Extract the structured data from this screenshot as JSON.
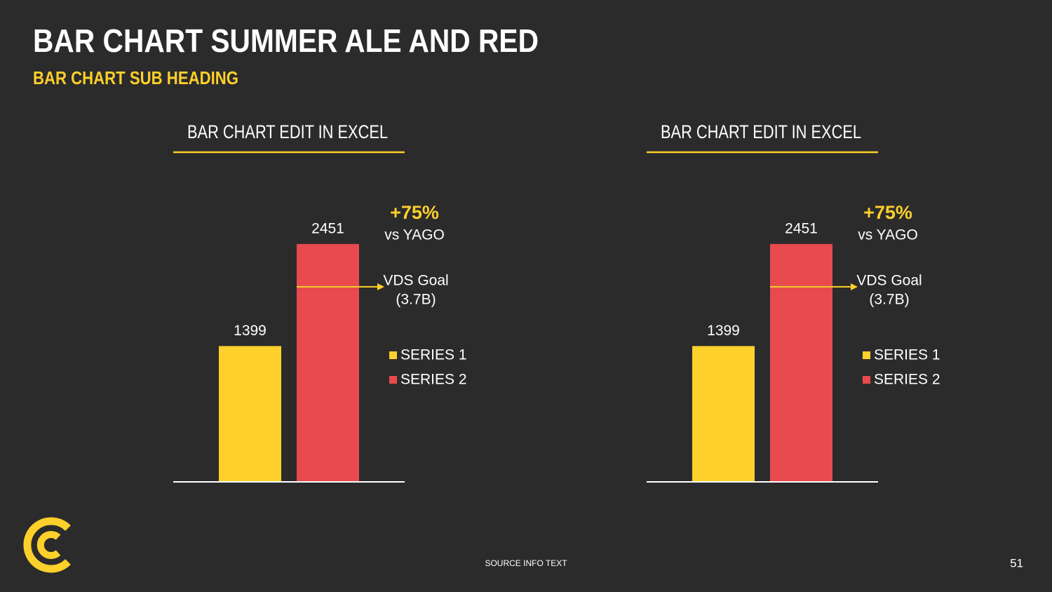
{
  "title": "BAR CHART SUMMER ALE AND RED",
  "subtitle": "BAR CHART SUB HEADING",
  "source": "SOURCE INFO TEXT",
  "page_number": 51,
  "chart_data": [
    {
      "type": "bar",
      "title": "BAR CHART EDIT IN EXCEL",
      "categories": [
        null
      ],
      "series": [
        {
          "name": "SERIES 1",
          "color": "#fdd02b",
          "values": [
            1399
          ]
        },
        {
          "name": "SERIES 2",
          "color": "#e84a4d",
          "values": [
            2451
          ]
        }
      ],
      "ylim": [
        0,
        2500
      ],
      "annotations": [
        "+75%",
        "vs YAGO"
      ],
      "reference_line": {
        "value": 2010,
        "label": [
          "VDS Goal",
          "(3.7B)"
        ],
        "color": "#fdd02b"
      }
    },
    {
      "type": "bar",
      "title": "BAR CHART EDIT IN EXCEL",
      "categories": [
        null
      ],
      "series": [
        {
          "name": "SERIES 1",
          "color": "#fdd02b",
          "values": [
            1399
          ]
        },
        {
          "name": "SERIES 2",
          "color": "#e84a4d",
          "values": [
            2451
          ]
        }
      ],
      "ylim": [
        0,
        2500
      ],
      "annotations": [
        "+75%",
        "vs YAGO"
      ],
      "reference_line": {
        "value": 2010,
        "label": [
          "VDS Goal",
          "(3.7B)"
        ],
        "color": "#fdd02b"
      }
    }
  ]
}
